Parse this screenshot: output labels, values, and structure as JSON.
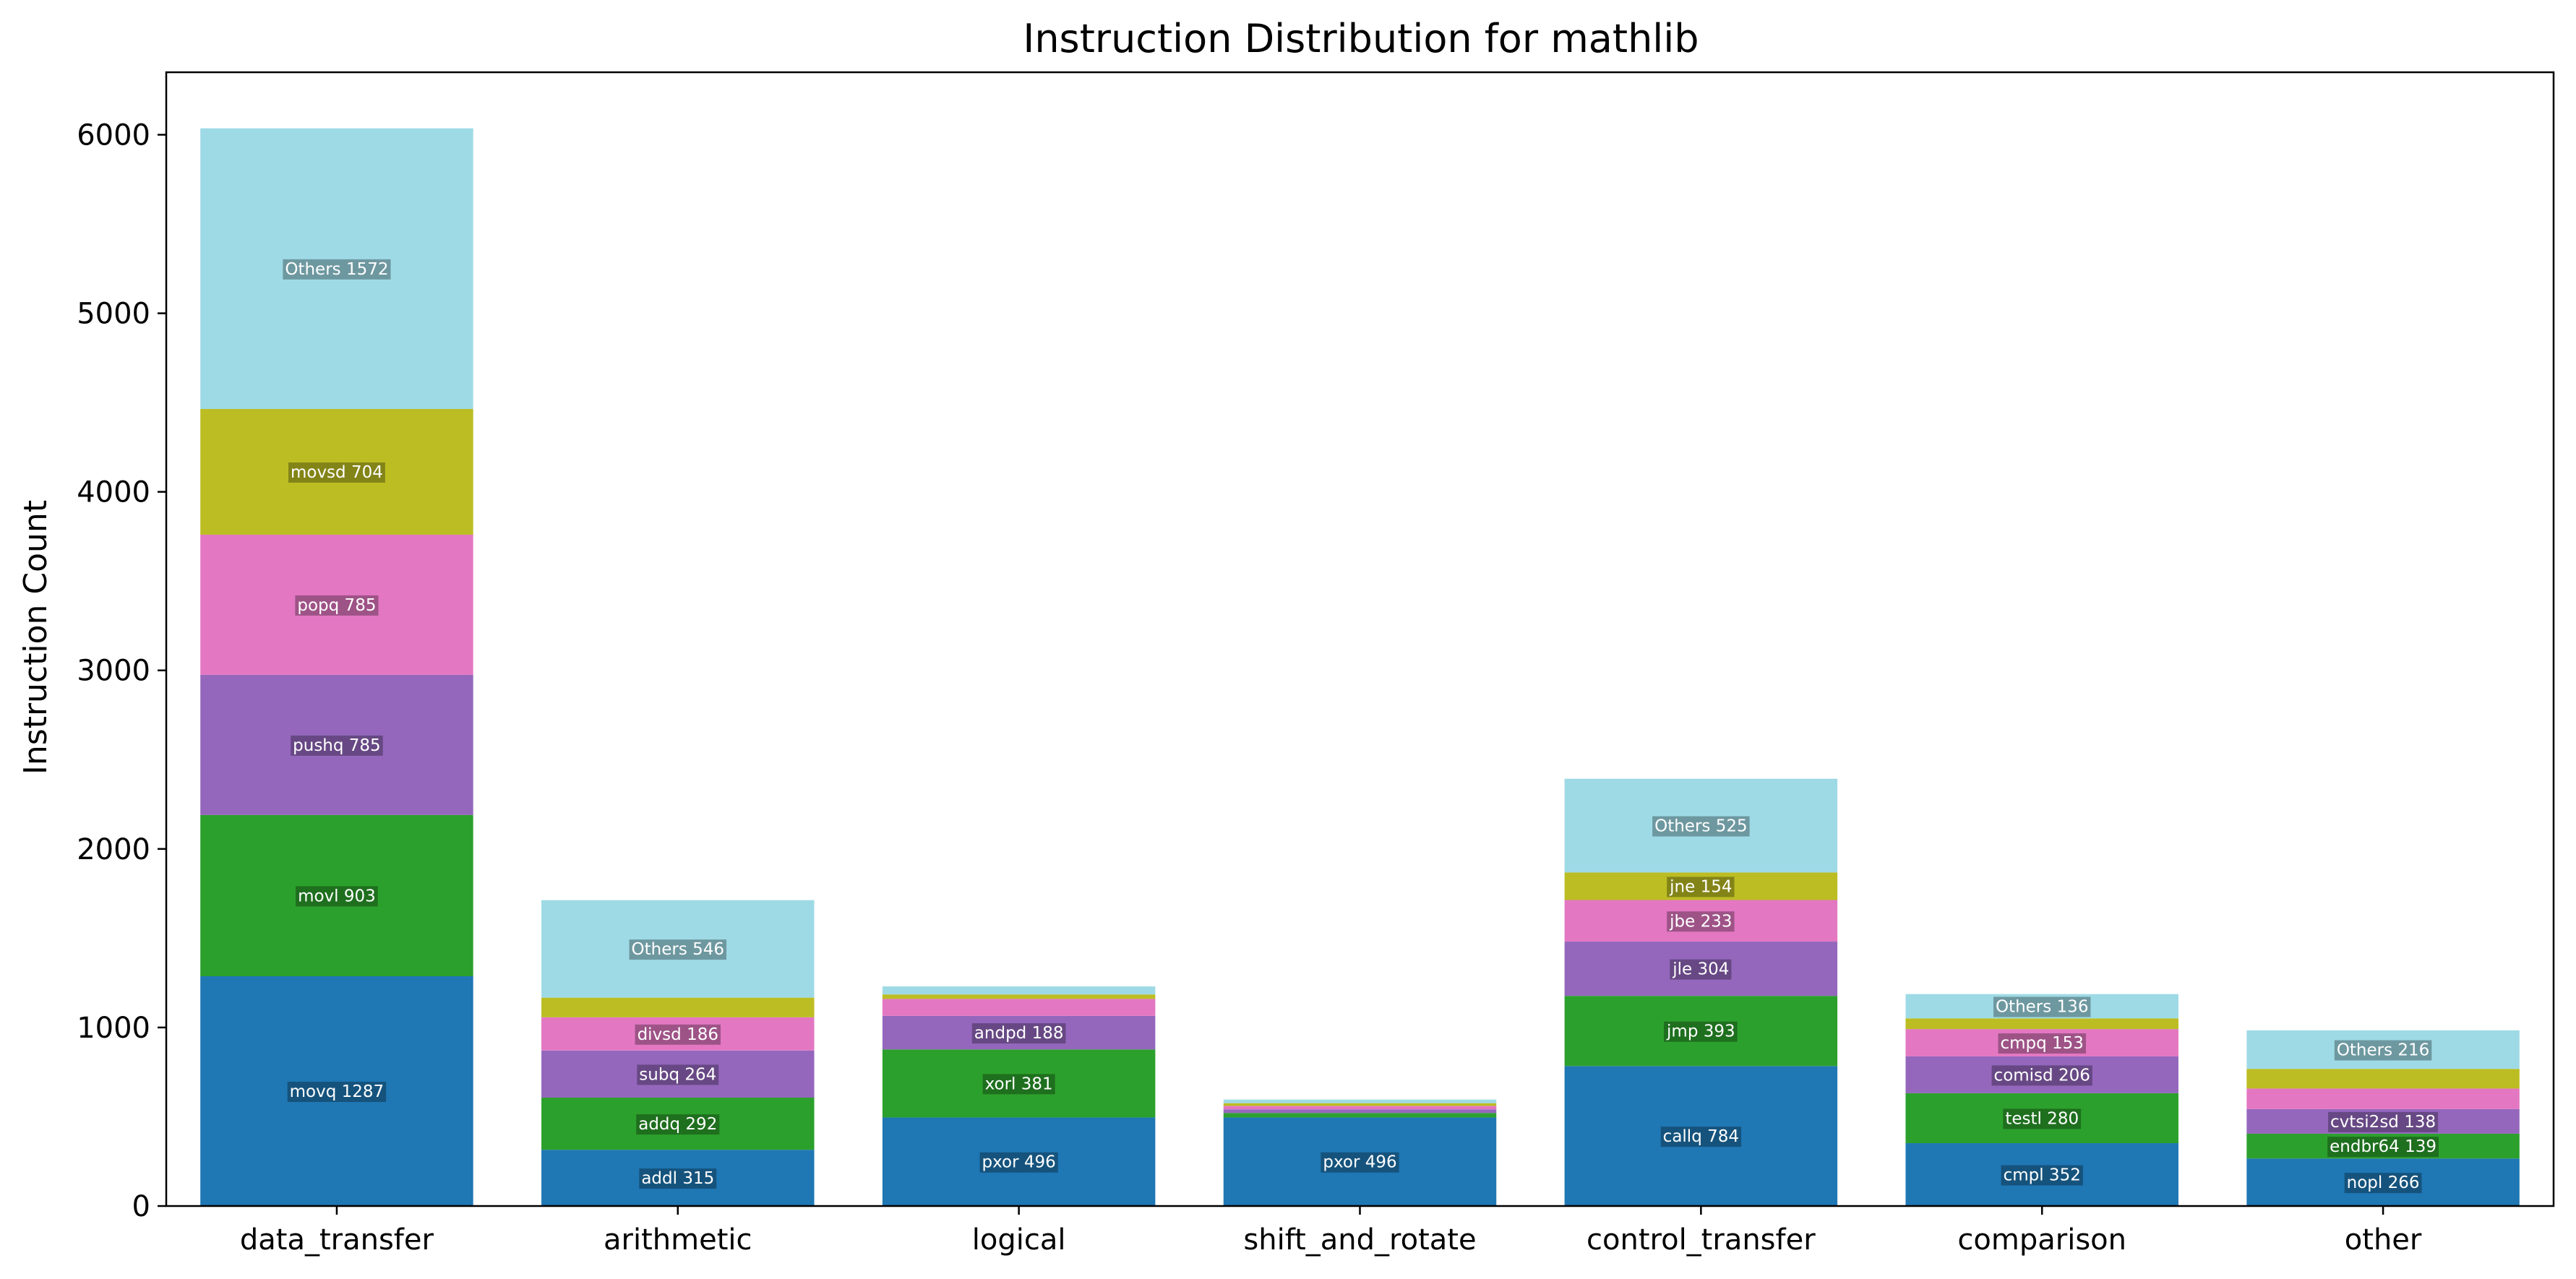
{
  "chart_data": {
    "type": "bar",
    "stacked": true,
    "title": "Instruction Distribution for mathlib",
    "xlabel": "",
    "ylabel": "Instruction Count",
    "ylim": [
      0,
      6350
    ],
    "yticks": [
      0,
      1000,
      2000,
      3000,
      4000,
      5000,
      6000
    ],
    "grid": false,
    "legend": "none",
    "categories": [
      "data_transfer",
      "arithmetic",
      "logical",
      "shift_and_rotate",
      "control_transfer",
      "comparison",
      "other"
    ],
    "stack_colors": [
      "#1f77b4",
      "#2ca02c",
      "#9467bd",
      "#e377c2",
      "#bcbd22",
      "#9edae5"
    ],
    "stacks": [
      {
        "category": "data_transfer",
        "segments": [
          {
            "name": "movq",
            "value": 1287,
            "label": "movq 1287"
          },
          {
            "name": "movl",
            "value": 903,
            "label": "movl 903"
          },
          {
            "name": "pushq",
            "value": 785,
            "label": "pushq 785"
          },
          {
            "name": "popq",
            "value": 785,
            "label": "popq 785"
          },
          {
            "name": "movsd",
            "value": 704,
            "label": "movsd 704"
          },
          {
            "name": "Others",
            "value": 1572,
            "label": "Others 1572"
          }
        ]
      },
      {
        "category": "arithmetic",
        "segments": [
          {
            "name": "addl",
            "value": 315,
            "label": "addl 315"
          },
          {
            "name": "addq",
            "value": 292,
            "label": "addq 292"
          },
          {
            "name": "subq",
            "value": 264,
            "label": "subq 264"
          },
          {
            "name": "divsd",
            "value": 186,
            "label": "divsd 186"
          },
          {
            "name": "",
            "value": 110,
            "label": ""
          },
          {
            "name": "Others",
            "value": 546,
            "label": "Others 546"
          }
        ]
      },
      {
        "category": "logical",
        "segments": [
          {
            "name": "pxor",
            "value": 496,
            "label": "pxor 496"
          },
          {
            "name": "xorl",
            "value": 381,
            "label": "xorl 381"
          },
          {
            "name": "andpd",
            "value": 188,
            "label": "andpd 188"
          },
          {
            "name": "",
            "value": 95,
            "label": ""
          },
          {
            "name": "",
            "value": 25,
            "label": ""
          },
          {
            "name": "",
            "value": 45,
            "label": ""
          }
        ]
      },
      {
        "category": "shift_and_rotate",
        "segments": [
          {
            "name": "pxor",
            "value": 496,
            "label": "pxor 496"
          },
          {
            "name": "",
            "value": 25,
            "label": ""
          },
          {
            "name": "",
            "value": 20,
            "label": ""
          },
          {
            "name": "",
            "value": 20,
            "label": ""
          },
          {
            "name": "",
            "value": 15,
            "label": ""
          },
          {
            "name": "",
            "value": 20,
            "label": ""
          }
        ]
      },
      {
        "category": "control_transfer",
        "segments": [
          {
            "name": "callq",
            "value": 784,
            "label": "callq 784"
          },
          {
            "name": "jmp",
            "value": 393,
            "label": "jmp 393"
          },
          {
            "name": "jle",
            "value": 304,
            "label": "jle 304"
          },
          {
            "name": "jbe",
            "value": 233,
            "label": "jbe 233"
          },
          {
            "name": "jne",
            "value": 154,
            "label": "jne 154"
          },
          {
            "name": "Others",
            "value": 525,
            "label": "Others 525"
          }
        ]
      },
      {
        "category": "comparison",
        "segments": [
          {
            "name": "cmpl",
            "value": 352,
            "label": "cmpl 352"
          },
          {
            "name": "testl",
            "value": 280,
            "label": "testl 280"
          },
          {
            "name": "comisd",
            "value": 206,
            "label": "comisd 206"
          },
          {
            "name": "cmpq",
            "value": 153,
            "label": "cmpq 153"
          },
          {
            "name": "",
            "value": 60,
            "label": ""
          },
          {
            "name": "Others",
            "value": 136,
            "label": "Others 136"
          }
        ]
      },
      {
        "category": "other",
        "segments": [
          {
            "name": "nopl",
            "value": 266,
            "label": "nopl 266"
          },
          {
            "name": "endbr64",
            "value": 139,
            "label": "endbr64 139"
          },
          {
            "name": "cvtsi2sd",
            "value": 138,
            "label": "cvtsi2sd 138"
          },
          {
            "name": "",
            "value": 115,
            "label": ""
          },
          {
            "name": "",
            "value": 110,
            "label": ""
          },
          {
            "name": "Others",
            "value": 216,
            "label": "Others 216"
          }
        ]
      }
    ]
  }
}
